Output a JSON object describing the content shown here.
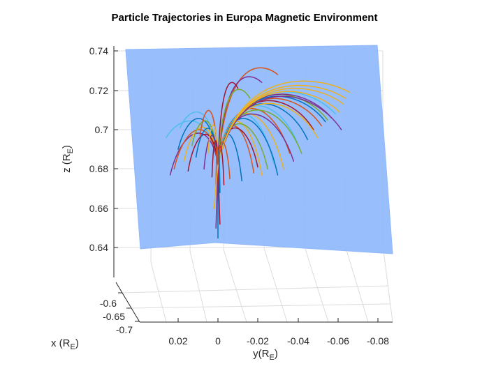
{
  "chart_data": {
    "type": "line",
    "title": "Particle Trajectories in Europa Magnetic Environment",
    "zlabel": {
      "main": "z (R",
      "sub": "E",
      "close": ")"
    },
    "ylabel": {
      "main": "y(R",
      "sub": "E",
      "close": ")"
    },
    "xlabel": {
      "main": "x (R",
      "sub": "E",
      "close": ")"
    },
    "z_ticks": [
      "0.74",
      "0.72",
      "0.7",
      "0.68",
      "0.66",
      "0.64"
    ],
    "y_ticks": [
      "0.02",
      "0",
      "-0.02",
      "-0.04",
      "-0.06",
      "-0.08"
    ],
    "x_ticks": [
      "-0.6",
      "-0.65",
      "-0.7"
    ],
    "zlim": [
      0.63,
      0.745
    ],
    "ylim": [
      0.03,
      -0.085
    ],
    "xlim": [
      -0.58,
      -0.7
    ],
    "grid": true,
    "surface": {
      "color": "#8fb8fb",
      "description": "semi-transparent plane"
    },
    "source_point": {
      "y": 0.0,
      "z": 0.682
    },
    "series_colors": [
      "#0072BD",
      "#D95319",
      "#EDB120",
      "#7E2F8E",
      "#77AC30",
      "#4DBEEE",
      "#A2142F"
    ],
    "trajectories": [
      {
        "end_y": 0.026,
        "end_z": 0.696,
        "apex_z": 0.705,
        "color": 5
      },
      {
        "end_y": 0.024,
        "end_z": 0.677,
        "apex_z": 0.7,
        "color": 3
      },
      {
        "end_y": 0.022,
        "end_z": 0.68,
        "apex_z": 0.702,
        "color": 1
      },
      {
        "end_y": 0.02,
        "end_z": 0.69,
        "apex_z": 0.708,
        "color": 0
      },
      {
        "end_y": 0.019,
        "end_z": 0.701,
        "apex_z": 0.71,
        "color": 5
      },
      {
        "end_y": 0.017,
        "end_z": 0.684,
        "apex_z": 0.703,
        "color": 2
      },
      {
        "end_y": 0.015,
        "end_z": 0.679,
        "apex_z": 0.699,
        "color": 6
      },
      {
        "end_y": 0.013,
        "end_z": 0.692,
        "apex_z": 0.706,
        "color": 4
      },
      {
        "end_y": 0.011,
        "end_z": 0.686,
        "apex_z": 0.702,
        "color": 0
      },
      {
        "end_y": 0.009,
        "end_z": 0.697,
        "apex_z": 0.712,
        "color": 1
      },
      {
        "end_y": 0.007,
        "end_z": 0.68,
        "apex_z": 0.698,
        "color": 3
      },
      {
        "end_y": 0.005,
        "end_z": 0.688,
        "apex_z": 0.704,
        "color": 2
      },
      {
        "end_y": 0.003,
        "end_z": 0.676,
        "apex_z": 0.695,
        "color": 6
      },
      {
        "end_y": -0.012,
        "end_z": 0.674,
        "apex_z": 0.7,
        "color": 0
      },
      {
        "end_y": -0.018,
        "end_z": 0.678,
        "apex_z": 0.705,
        "color": 1
      },
      {
        "end_y": -0.022,
        "end_z": 0.677,
        "apex_z": 0.708,
        "color": 2
      },
      {
        "end_y": -0.02,
        "end_z": 0.681,
        "apex_z": 0.703,
        "color": 6
      },
      {
        "end_y": -0.025,
        "end_z": 0.68,
        "apex_z": 0.706,
        "color": 4
      },
      {
        "end_y": -0.028,
        "end_z": 0.683,
        "apex_z": 0.712,
        "color": 5
      },
      {
        "end_y": -0.03,
        "end_z": 0.677,
        "apex_z": 0.71,
        "color": 0
      },
      {
        "end_y": -0.033,
        "end_z": 0.68,
        "apex_z": 0.713,
        "color": 2
      },
      {
        "end_y": -0.036,
        "end_z": 0.688,
        "apex_z": 0.715,
        "color": 1
      },
      {
        "end_y": -0.038,
        "end_z": 0.684,
        "apex_z": 0.712,
        "color": 3
      },
      {
        "end_y": -0.04,
        "end_z": 0.693,
        "apex_z": 0.716,
        "color": 5
      },
      {
        "end_y": -0.042,
        "end_z": 0.688,
        "apex_z": 0.714,
        "color": 4
      },
      {
        "end_y": -0.045,
        "end_z": 0.695,
        "apex_z": 0.717,
        "color": 0
      },
      {
        "end_y": -0.048,
        "end_z": 0.7,
        "apex_z": 0.718,
        "color": 6
      },
      {
        "end_y": -0.05,
        "end_z": 0.696,
        "apex_z": 0.717,
        "color": 2
      },
      {
        "end_y": -0.052,
        "end_z": 0.702,
        "apex_z": 0.719,
        "color": 1
      },
      {
        "end_y": -0.054,
        "end_z": 0.704,
        "apex_z": 0.72,
        "color": 0
      },
      {
        "end_y": -0.055,
        "end_z": 0.705,
        "apex_z": 0.721,
        "color": 4
      },
      {
        "end_y": -0.057,
        "end_z": 0.706,
        "apex_z": 0.721,
        "color": 3
      },
      {
        "end_y": -0.059,
        "end_z": 0.708,
        "apex_z": 0.722,
        "color": 5
      },
      {
        "end_y": -0.061,
        "end_z": 0.709,
        "apex_z": 0.722,
        "color": 2
      },
      {
        "end_y": -0.062,
        "end_z": 0.7,
        "apex_z": 0.721,
        "color": 3
      },
      {
        "end_y": -0.063,
        "end_z": 0.713,
        "apex_z": 0.723,
        "color": 2
      },
      {
        "end_y": -0.064,
        "end_z": 0.716,
        "apex_z": 0.724,
        "color": 2
      },
      {
        "end_y": -0.066,
        "end_z": 0.719,
        "apex_z": 0.726,
        "color": 2
      },
      {
        "end_y": -0.03,
        "end_z": 0.728,
        "apex_z": 0.732,
        "color": 1
      },
      {
        "end_y": -0.022,
        "end_z": 0.724,
        "apex_z": 0.727,
        "color": 3
      },
      {
        "end_y": -0.01,
        "end_z": 0.721,
        "apex_z": 0.724,
        "color": 6
      },
      {
        "end_y": -0.016,
        "end_z": 0.716,
        "apex_z": 0.721,
        "color": 4
      },
      {
        "end_y": -0.003,
        "end_z": 0.672,
        "apex_z": 0.692,
        "color": 6
      },
      {
        "end_y": -0.006,
        "end_z": 0.675,
        "apex_z": 0.694,
        "color": 1
      },
      {
        "end_y": 0.0,
        "end_z": 0.664,
        "apex_z": 0.69,
        "color": 3
      },
      {
        "end_y": -0.001,
        "end_z": 0.668,
        "apex_z": 0.689,
        "color": 0
      },
      {
        "end_y": 0.001,
        "end_z": 0.671,
        "apex_z": 0.691,
        "color": 1
      }
    ]
  }
}
